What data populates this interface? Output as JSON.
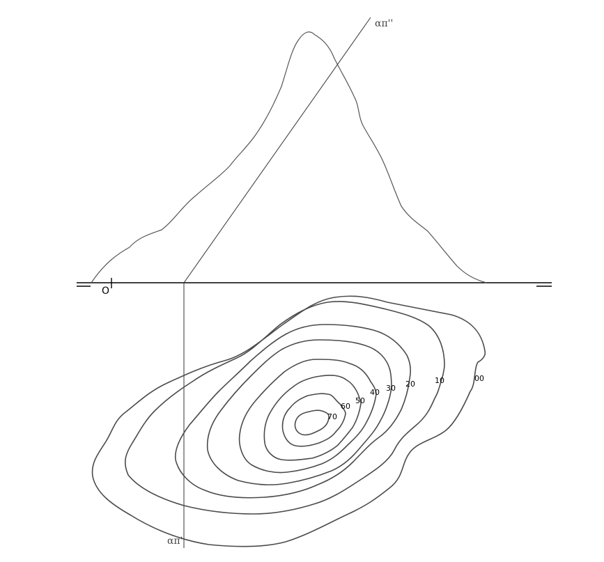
{
  "labels": {
    "origin": "O",
    "trace_vertical": "απ''",
    "trace_horizontal": "απ'"
  },
  "contour_levels": [
    "00",
    "10",
    "20",
    "30",
    "40",
    "50",
    "60",
    "70"
  ],
  "colors": {
    "contour": "#4a4a4a",
    "profile": "#555555",
    "axis": "#000000",
    "background": "#ffffff"
  }
}
